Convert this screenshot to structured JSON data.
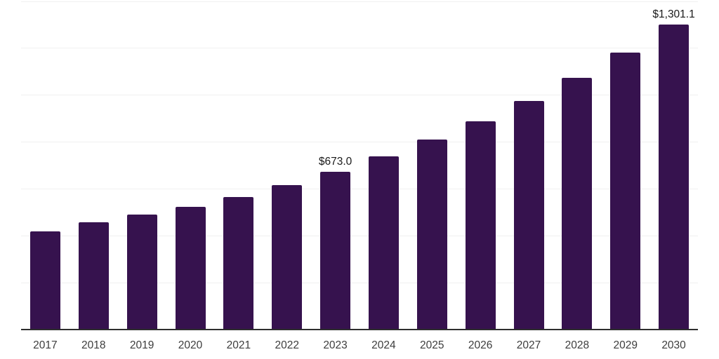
{
  "chart_data": {
    "type": "bar",
    "title": "",
    "xlabel": "",
    "ylabel": "",
    "categories": [
      "2017",
      "2018",
      "2019",
      "2020",
      "2021",
      "2022",
      "2023",
      "2024",
      "2025",
      "2026",
      "2027",
      "2028",
      "2029",
      "2030"
    ],
    "values": [
      417.5,
      456.2,
      489.3,
      522.0,
      565.0,
      614.1,
      673.0,
      738.6,
      808.5,
      888.0,
      973.0,
      1073.5,
      1180.5,
      1301.1
    ],
    "data_labels": [
      "",
      "",
      "",
      "",
      "",
      "",
      "$673.0",
      "",
      "",
      "",
      "",
      "",
      "",
      "$1,301.1"
    ],
    "ylim": [
      0,
      1400
    ],
    "grid_step": 200,
    "grid": true,
    "legend": "none",
    "colors": {
      "bar": "#36124E",
      "background": "#ffffff",
      "gridline": "#f0f0f0",
      "axis_line": "#2e2e2e",
      "tick_label": "#3d3d3d",
      "data_label": "#1a1a1a"
    }
  }
}
